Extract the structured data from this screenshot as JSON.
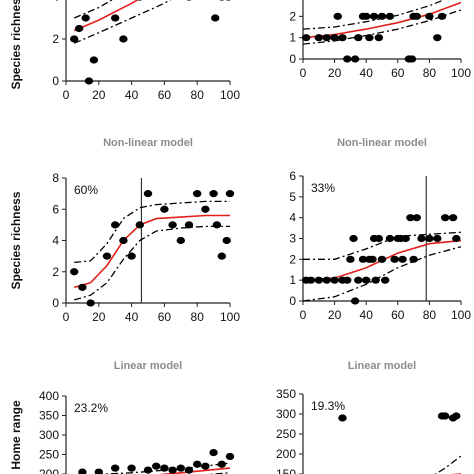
{
  "colors": {
    "points": "#000000",
    "fit_line": "#e0201b",
    "ci_line": "#000000",
    "axis": "#222222",
    "threshold_line": "#333333",
    "section_title": "#8c8c8c"
  },
  "chart_data": [
    {
      "id": "linear-1",
      "type": "scatter",
      "title": "",
      "ylabel": "Species richness",
      "percent_label": "",
      "xlim": [
        0,
        100
      ],
      "ylim": [
        0,
        6
      ],
      "xticks": [
        0,
        20,
        40,
        60,
        80,
        100
      ],
      "yticks": [
        0,
        2,
        4,
        6
      ],
      "points": [
        [
          5,
          2
        ],
        [
          8,
          2.5
        ],
        [
          12,
          3
        ],
        [
          14,
          0
        ],
        [
          17,
          1
        ],
        [
          30,
          3
        ],
        [
          35,
          2
        ],
        [
          45,
          4
        ],
        [
          75,
          4
        ],
        [
          91,
          3
        ],
        [
          95,
          4
        ],
        [
          99,
          4
        ]
      ],
      "fit": [
        [
          5,
          2.4
        ],
        [
          20,
          2.9
        ],
        [
          40,
          3.7
        ],
        [
          60,
          4.6
        ],
        [
          75,
          5.5
        ],
        [
          100,
          6.5
        ]
      ],
      "ci_upper": [
        [
          5,
          3.0
        ],
        [
          20,
          3.5
        ],
        [
          40,
          4.4
        ],
        [
          60,
          5.6
        ],
        [
          75,
          6.5
        ],
        [
          100,
          8.0
        ]
      ],
      "ci_lower": [
        [
          5,
          1.8
        ],
        [
          20,
          2.3
        ],
        [
          40,
          3.0
        ],
        [
          60,
          3.7
        ],
        [
          75,
          4.4
        ],
        [
          100,
          5.2
        ]
      ]
    },
    {
      "id": "linear-2",
      "type": "scatter",
      "title": "",
      "ylabel": "",
      "percent_label": "",
      "xlim": [
        0,
        100
      ],
      "ylim": [
        0,
        3
      ],
      "xticks": [
        0,
        20,
        40,
        60,
        80,
        100
      ],
      "yticks": [
        0,
        1,
        2,
        3
      ],
      "points": [
        [
          2,
          1
        ],
        [
          10,
          1
        ],
        [
          15,
          1
        ],
        [
          20,
          1
        ],
        [
          22,
          2
        ],
        [
          25,
          1
        ],
        [
          28,
          0
        ],
        [
          30,
          3
        ],
        [
          33,
          0
        ],
        [
          35,
          1
        ],
        [
          38,
          2
        ],
        [
          40,
          2
        ],
        [
          42,
          1
        ],
        [
          45,
          2
        ],
        [
          48,
          1
        ],
        [
          50,
          2
        ],
        [
          52,
          3
        ],
        [
          55,
          2
        ],
        [
          58,
          3
        ],
        [
          60,
          3
        ],
        [
          62,
          3
        ],
        [
          65,
          3
        ],
        [
          67,
          0
        ],
        [
          69,
          0
        ],
        [
          70,
          2
        ],
        [
          72,
          2
        ],
        [
          80,
          2
        ],
        [
          85,
          1
        ],
        [
          88,
          2
        ],
        [
          93,
          3
        ],
        [
          95,
          3
        ],
        [
          97,
          3
        ],
        [
          99,
          3
        ]
      ],
      "fit": [
        [
          0,
          1.0
        ],
        [
          20,
          1.15
        ],
        [
          40,
          1.4
        ],
        [
          60,
          1.7
        ],
        [
          80,
          2.1
        ],
        [
          100,
          2.65
        ]
      ],
      "ci_upper": [
        [
          0,
          1.4
        ],
        [
          20,
          1.5
        ],
        [
          40,
          1.75
        ],
        [
          60,
          2.05
        ],
        [
          80,
          2.5
        ],
        [
          100,
          3.1
        ]
      ],
      "ci_lower": [
        [
          0,
          0.7
        ],
        [
          20,
          0.85
        ],
        [
          40,
          1.1
        ],
        [
          60,
          1.4
        ],
        [
          80,
          1.8
        ],
        [
          100,
          2.3
        ]
      ]
    },
    {
      "id": "nonlinear-1",
      "type": "scatter",
      "title": "Non-linear model",
      "ylabel": "Species richness",
      "percent_label": "60%",
      "threshold_x": 46,
      "xlim": [
        0,
        100
      ],
      "ylim": [
        0,
        8
      ],
      "xticks": [
        0,
        20,
        40,
        60,
        80,
        100
      ],
      "yticks": [
        0,
        2,
        4,
        6,
        8
      ],
      "points": [
        [
          5,
          2
        ],
        [
          10,
          1
        ],
        [
          15,
          0
        ],
        [
          25,
          3
        ],
        [
          30,
          5
        ],
        [
          35,
          4
        ],
        [
          40,
          3
        ],
        [
          45,
          5
        ],
        [
          50,
          7
        ],
        [
          60,
          6
        ],
        [
          65,
          5
        ],
        [
          70,
          4
        ],
        [
          75,
          5
        ],
        [
          80,
          7
        ],
        [
          85,
          6
        ],
        [
          90,
          7
        ],
        [
          92,
          5
        ],
        [
          95,
          3
        ],
        [
          98,
          4
        ],
        [
          100,
          7
        ]
      ],
      "fit": [
        [
          5,
          1.0
        ],
        [
          15,
          1.3
        ],
        [
          25,
          2.4
        ],
        [
          35,
          4.0
        ],
        [
          45,
          5.0
        ],
        [
          55,
          5.4
        ],
        [
          70,
          5.5
        ],
        [
          85,
          5.6
        ],
        [
          100,
          5.6
        ]
      ],
      "ci_upper": [
        [
          5,
          2.6
        ],
        [
          15,
          2.7
        ],
        [
          25,
          3.8
        ],
        [
          35,
          5.4
        ],
        [
          45,
          6.1
        ],
        [
          55,
          6.3
        ],
        [
          70,
          6.4
        ],
        [
          85,
          6.5
        ],
        [
          100,
          6.5
        ]
      ],
      "ci_lower": [
        [
          5,
          0.2
        ],
        [
          15,
          0.5
        ],
        [
          25,
          1.3
        ],
        [
          35,
          2.8
        ],
        [
          45,
          4.0
        ],
        [
          55,
          4.6
        ],
        [
          70,
          4.8
        ],
        [
          85,
          4.9
        ],
        [
          100,
          4.9
        ]
      ]
    },
    {
      "id": "nonlinear-2",
      "type": "scatter",
      "title": "Non-linear model",
      "ylabel": "",
      "percent_label": "33%",
      "threshold_x": 78,
      "xlim": [
        0,
        100
      ],
      "ylim": [
        0,
        6
      ],
      "xticks": [
        0,
        20,
        40,
        60,
        80,
        100
      ],
      "yticks": [
        0,
        1,
        2,
        3,
        4,
        5,
        6
      ],
      "points": [
        [
          2,
          1
        ],
        [
          5,
          1
        ],
        [
          10,
          1
        ],
        [
          15,
          1
        ],
        [
          20,
          1
        ],
        [
          25,
          1
        ],
        [
          28,
          1
        ],
        [
          30,
          2
        ],
        [
          32,
          3
        ],
        [
          33,
          0
        ],
        [
          35,
          1
        ],
        [
          38,
          2
        ],
        [
          40,
          1
        ],
        [
          42,
          2
        ],
        [
          44,
          2
        ],
        [
          45,
          3
        ],
        [
          46,
          1
        ],
        [
          48,
          3
        ],
        [
          50,
          2
        ],
        [
          52,
          1
        ],
        [
          55,
          3
        ],
        [
          58,
          2
        ],
        [
          60,
          3
        ],
        [
          62,
          3
        ],
        [
          63,
          2
        ],
        [
          65,
          3
        ],
        [
          68,
          4
        ],
        [
          70,
          2
        ],
        [
          72,
          4
        ],
        [
          75,
          3
        ],
        [
          80,
          3
        ],
        [
          85,
          3
        ],
        [
          90,
          4
        ],
        [
          95,
          4
        ],
        [
          97,
          3
        ]
      ],
      "fit": [
        [
          0,
          1.0
        ],
        [
          20,
          1.1
        ],
        [
          40,
          1.6
        ],
        [
          60,
          2.3
        ],
        [
          80,
          2.75
        ],
        [
          100,
          2.9
        ]
      ],
      "ci_upper": [
        [
          0,
          2.0
        ],
        [
          20,
          2.0
        ],
        [
          40,
          2.5
        ],
        [
          60,
          3.1
        ],
        [
          80,
          3.2
        ],
        [
          100,
          3.3
        ]
      ],
      "ci_lower": [
        [
          0,
          0.0
        ],
        [
          20,
          0.2
        ],
        [
          40,
          0.8
        ],
        [
          60,
          1.6
        ],
        [
          80,
          2.2
        ],
        [
          100,
          2.6
        ]
      ]
    },
    {
      "id": "linear-3",
      "type": "scatter",
      "title": "Linear model",
      "ylabel": "Home range",
      "percent_label": "23.2%",
      "xlim": [
        0,
        100
      ],
      "ylim": [
        200,
        400
      ],
      "xticks": [],
      "yticks": [
        200,
        250,
        300,
        350,
        400
      ],
      "points": [
        [
          10,
          205
        ],
        [
          20,
          205
        ],
        [
          30,
          215
        ],
        [
          40,
          215
        ],
        [
          50,
          210
        ],
        [
          55,
          220
        ],
        [
          60,
          215
        ],
        [
          65,
          210
        ],
        [
          70,
          215
        ],
        [
          75,
          210
        ],
        [
          80,
          225
        ],
        [
          85,
          220
        ],
        [
          90,
          255
        ],
        [
          95,
          225
        ],
        [
          100,
          245
        ]
      ],
      "fit": [
        [
          0,
          180
        ],
        [
          40,
          192
        ],
        [
          70,
          203
        ],
        [
          100,
          215
        ]
      ],
      "ci_upper": [
        [
          0,
          195
        ],
        [
          40,
          203
        ],
        [
          70,
          213
        ],
        [
          100,
          228
        ]
      ],
      "ci_lower": [
        [
          0,
          170
        ],
        [
          40,
          182
        ],
        [
          70,
          193
        ],
        [
          100,
          203
        ]
      ]
    },
    {
      "id": "linear-4",
      "type": "scatter",
      "title": "Linear model",
      "ylabel": "",
      "percent_label": "19.3%",
      "xlim": [
        0,
        100
      ],
      "ylim": [
        150,
        350
      ],
      "xticks": [],
      "yticks": [
        150,
        200,
        250,
        300,
        350
      ],
      "points": [
        [
          25,
          290
        ],
        [
          88,
          295
        ],
        [
          90,
          295
        ],
        [
          95,
          290
        ],
        [
          97,
          295
        ]
      ],
      "fit": [
        [
          0,
          120
        ],
        [
          100,
          150
        ]
      ],
      "ci_upper": [
        [
          60,
          110
        ],
        [
          80,
          140
        ],
        [
          90,
          165
        ],
        [
          100,
          195
        ]
      ],
      "ci_lower": []
    }
  ]
}
